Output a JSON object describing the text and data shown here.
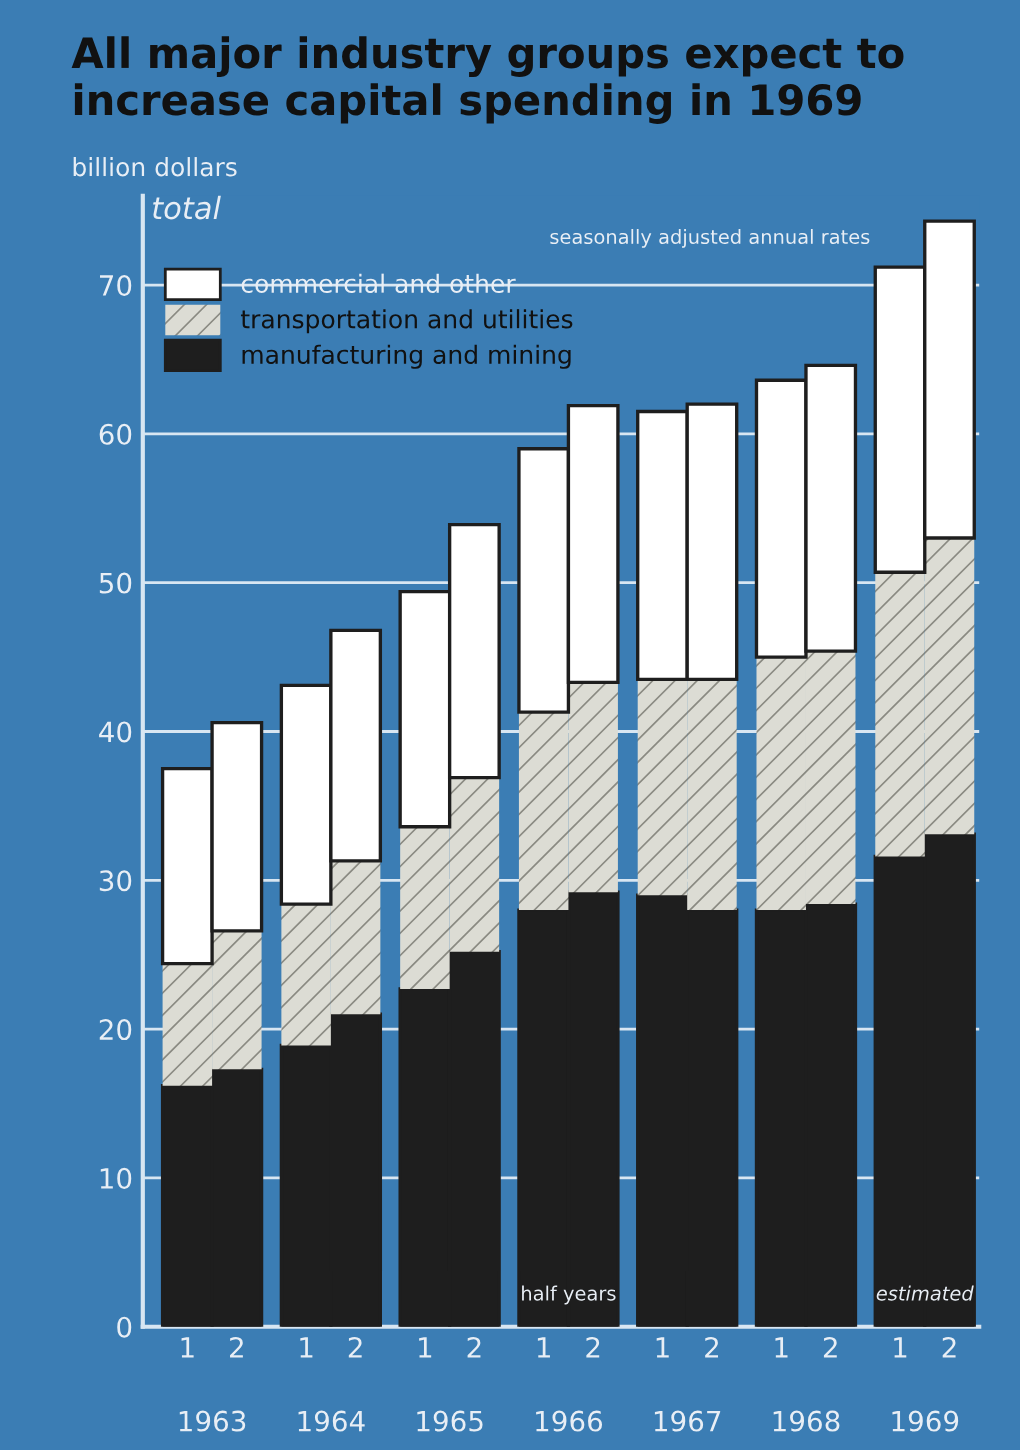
{
  "chart_data": {
    "type": "bar",
    "title": "All major industry groups expect to increase capital spending in 1969",
    "ylabel": "billion dollars",
    "stacked": true,
    "categories": [
      "1",
      "2",
      "1",
      "2",
      "1",
      "2",
      "1",
      "2",
      "1",
      "2",
      "1",
      "2",
      "1",
      "2"
    ],
    "series": [
      {
        "name": "manufacturing and mining",
        "color": "#1e1e1e",
        "values": [
          16.2,
          17.3,
          18.9,
          21.0,
          22.7,
          25.2,
          28.0,
          29.2,
          29.0,
          28.0,
          28.0,
          28.4,
          31.6,
          33.1
        ]
      },
      {
        "name": "transportation and utilities",
        "color": "#dcdcd4",
        "values": [
          8.2,
          9.3,
          9.5,
          10.3,
          10.9,
          11.7,
          13.3,
          14.1,
          14.5,
          15.5,
          17.0,
          17.0,
          19.1,
          19.9
        ]
      },
      {
        "name": "commercial and other",
        "color": "#ffffff",
        "values": [
          13.1,
          14.0,
          14.7,
          15.5,
          15.8,
          17.0,
          17.7,
          18.6,
          18.0,
          18.5,
          18.6,
          19.2,
          20.5,
          21.3
        ]
      }
    ],
    "ylim": [
      0,
      76
    ],
    "yticks": [
      0,
      10,
      20,
      30,
      40,
      50,
      60,
      70
    ],
    "grid": "y",
    "legend": "top left",
    "annotations": [
      "1963",
      "1964",
      "1965",
      "1966",
      "1967",
      "1968",
      "1969",
      "total",
      "seasonally adjusted annual rates",
      "half years",
      "estimated"
    ]
  }
}
